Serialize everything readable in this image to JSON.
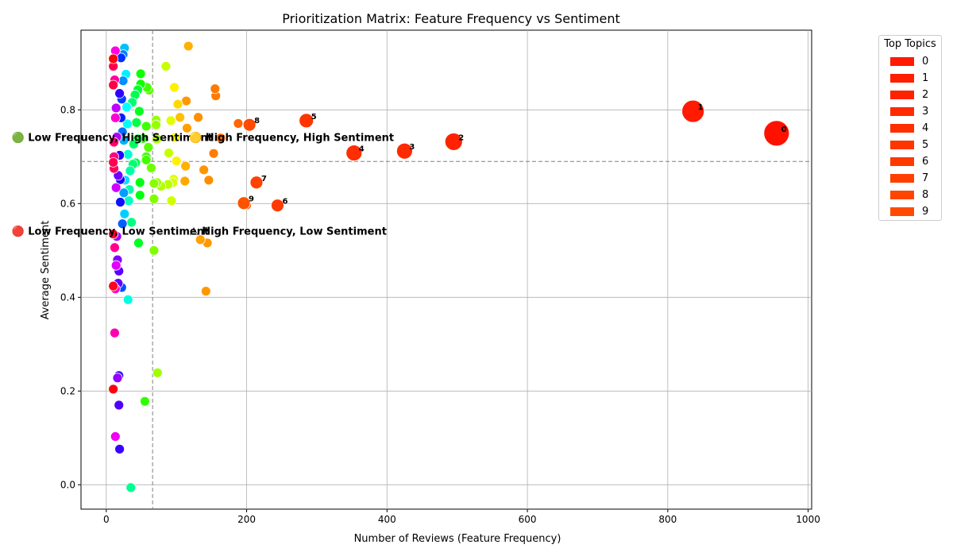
{
  "chart_data": {
    "type": "scatter",
    "title": "Prioritization Matrix: Feature Frequency vs Sentiment",
    "xlabel": "Number of Reviews (Feature Frequency)",
    "ylabel": "Average Sentiment",
    "xlim": [
      -36,
      1005
    ],
    "ylim": [
      -0.052,
      0.97
    ],
    "xticks": [
      0,
      200,
      400,
      600,
      800,
      1000
    ],
    "yticks": [
      0.0,
      0.2,
      0.4,
      0.6,
      0.8
    ],
    "xtick_labels": [
      "0",
      "200",
      "400",
      "600",
      "800",
      "1000"
    ],
    "ytick_labels": [
      "0.0",
      "0.2",
      "0.4",
      "0.6",
      "0.8"
    ],
    "grid": true,
    "divider_x": 66,
    "divider_y": 0.69,
    "quadrant_labels": [
      {
        "text": "🟢 Low Frequency, High Sentiment",
        "x": -135,
        "y": 0.74
      },
      {
        "text": "🟡 High Frequency, High Sentiment",
        "x": 118,
        "y": 0.74
      },
      {
        "text": "🔴 Low Frequency, Low Sentiment",
        "x": -135,
        "y": 0.54
      },
      {
        "text": "⚠ High Frequency, Low Sentiment",
        "x": 118,
        "y": 0.54
      }
    ],
    "legend": {
      "title": "Top Topics",
      "placement": "outside-right",
      "entries": [
        "0",
        "1",
        "2",
        "3",
        "4",
        "5",
        "6",
        "7",
        "8",
        "9"
      ],
      "colors": [
        "#ff1a00",
        "#ff1f00",
        "#ff2200",
        "#ff2a00",
        "#ff2e00",
        "#ff3500",
        "#ff3a00",
        "#ff3f00",
        "#ff4500",
        "#ff4a00"
      ]
    },
    "top_topics": [
      {
        "label": "0",
        "x": 955,
        "y": 0.75,
        "color": "#ff1100"
      },
      {
        "label": "1",
        "x": 836,
        "y": 0.797,
        "color": "#ff1a00"
      },
      {
        "label": "2",
        "x": 495,
        "y": 0.732,
        "color": "#ff2200"
      },
      {
        "label": "3",
        "x": 425,
        "y": 0.712,
        "color": "#ff2a00"
      },
      {
        "label": "4",
        "x": 353,
        "y": 0.708,
        "color": "#ff2e00"
      },
      {
        "label": "5",
        "x": 285,
        "y": 0.777,
        "color": "#ff3500"
      },
      {
        "label": "6",
        "x": 244,
        "y": 0.596,
        "color": "#ff3a00"
      },
      {
        "label": "7",
        "x": 214,
        "y": 0.645,
        "color": "#ff4200"
      },
      {
        "label": "8",
        "x": 204,
        "y": 0.768,
        "color": "#ff4a00"
      },
      {
        "label": "9",
        "x": 196,
        "y": 0.601,
        "color": "#ff5200"
      }
    ],
    "other_topics": [
      {
        "x": 156,
        "y": 0.83,
        "color": "#ff7a00"
      },
      {
        "x": 155,
        "y": 0.845,
        "color": "#ff7a00"
      },
      {
        "x": 163,
        "y": 0.74,
        "color": "#ff6e00"
      },
      {
        "x": 153,
        "y": 0.707,
        "color": "#ff7c00"
      },
      {
        "x": 188,
        "y": 0.771,
        "color": "#ff6400"
      },
      {
        "x": 200,
        "y": 0.597,
        "color": "#ff6000"
      },
      {
        "x": 131,
        "y": 0.784,
        "color": "#ff9000"
      },
      {
        "x": 114,
        "y": 0.819,
        "color": "#ff9800"
      },
      {
        "x": 115,
        "y": 0.761,
        "color": "#ffa000"
      },
      {
        "x": 139,
        "y": 0.672,
        "color": "#ff9400"
      },
      {
        "x": 146,
        "y": 0.65,
        "color": "#ff8c00"
      },
      {
        "x": 112,
        "y": 0.648,
        "color": "#ffa800"
      },
      {
        "x": 113,
        "y": 0.68,
        "color": "#ffb000"
      },
      {
        "x": 117,
        "y": 0.936,
        "color": "#ffb000"
      },
      {
        "x": 144,
        "y": 0.516,
        "color": "#ff9800"
      },
      {
        "x": 134,
        "y": 0.523,
        "color": "#ffa000"
      },
      {
        "x": 142,
        "y": 0.413,
        "color": "#ff9800"
      },
      {
        "x": 105,
        "y": 0.784,
        "color": "#ffc000"
      },
      {
        "x": 102,
        "y": 0.812,
        "color": "#ffd800"
      },
      {
        "x": 97,
        "y": 0.848,
        "color": "#fff000"
      },
      {
        "x": 100,
        "y": 0.691,
        "color": "#fff000"
      },
      {
        "x": 98,
        "y": 0.741,
        "color": "#ffff00"
      },
      {
        "x": 92,
        "y": 0.777,
        "color": "#e0ff00"
      },
      {
        "x": 96,
        "y": 0.652,
        "color": "#e0ff00"
      },
      {
        "x": 95,
        "y": 0.645,
        "color": "#d8ff00"
      },
      {
        "x": 93,
        "y": 0.606,
        "color": "#d0ff00"
      },
      {
        "x": 89,
        "y": 0.708,
        "color": "#c8ff00"
      },
      {
        "x": 85,
        "y": 0.893,
        "color": "#c8ff00"
      },
      {
        "x": 88,
        "y": 0.641,
        "color": "#b8ff00"
      },
      {
        "x": 78,
        "y": 0.637,
        "color": "#b0ff00"
      },
      {
        "x": 72,
        "y": 0.738,
        "color": "#a8ff00"
      },
      {
        "x": 72,
        "y": 0.645,
        "color": "#a0ff00"
      },
      {
        "x": 71,
        "y": 0.778,
        "color": "#98ff00"
      },
      {
        "x": 71,
        "y": 0.768,
        "color": "#98ff00"
      },
      {
        "x": 73,
        "y": 0.239,
        "color": "#a0ff00"
      },
      {
        "x": 68,
        "y": 0.643,
        "color": "#88ff00"
      },
      {
        "x": 68,
        "y": 0.61,
        "color": "#80ff00"
      },
      {
        "x": 68,
        "y": 0.5,
        "color": "#80ff00"
      },
      {
        "x": 64,
        "y": 0.676,
        "color": "#70ff00"
      },
      {
        "x": 61,
        "y": 0.842,
        "color": "#60ff00"
      },
      {
        "x": 60,
        "y": 0.72,
        "color": "#58ff00"
      },
      {
        "x": 57,
        "y": 0.765,
        "color": "#40ff00"
      },
      {
        "x": 58,
        "y": 0.848,
        "color": "#40ff00"
      },
      {
        "x": 57,
        "y": 0.7,
        "color": "#40ff00"
      },
      {
        "x": 57,
        "y": 0.693,
        "color": "#40ff00"
      },
      {
        "x": 55,
        "y": 0.178,
        "color": "#30ff00"
      },
      {
        "x": 52,
        "y": 0.739,
        "color": "#20ff00"
      },
      {
        "x": 49,
        "y": 0.855,
        "color": "#10ff00"
      },
      {
        "x": 49,
        "y": 0.877,
        "color": "#10ff00"
      },
      {
        "x": 48,
        "y": 0.618,
        "color": "#00ff10"
      },
      {
        "x": 48,
        "y": 0.645,
        "color": "#00ff10"
      },
      {
        "x": 47,
        "y": 0.797,
        "color": "#00ff20"
      },
      {
        "x": 46,
        "y": 0.516,
        "color": "#00ff20"
      },
      {
        "x": 45,
        "y": 0.738,
        "color": "#00ff30"
      },
      {
        "x": 45,
        "y": 0.843,
        "color": "#00ff30"
      },
      {
        "x": 43,
        "y": 0.773,
        "color": "#00ff40"
      },
      {
        "x": 42,
        "y": 0.687,
        "color": "#00ff50"
      },
      {
        "x": 41,
        "y": 0.832,
        "color": "#00ff50"
      },
      {
        "x": 39,
        "y": 0.727,
        "color": "#00ff60"
      },
      {
        "x": 37,
        "y": 0.816,
        "color": "#00ff70"
      },
      {
        "x": 38,
        "y": 0.684,
        "color": "#00ff70"
      },
      {
        "x": 36,
        "y": 0.56,
        "color": "#00ff80"
      },
      {
        "x": 35,
        "y": -0.006,
        "color": "#00ff90"
      },
      {
        "x": 34,
        "y": 0.67,
        "color": "#00ffa0"
      },
      {
        "x": 33,
        "y": 0.63,
        "color": "#00ffb0"
      },
      {
        "x": 32,
        "y": 0.606,
        "color": "#00ffc0"
      },
      {
        "x": 31,
        "y": 0.705,
        "color": "#00ffd0"
      },
      {
        "x": 31,
        "y": 0.395,
        "color": "#00ffe0"
      },
      {
        "x": 30,
        "y": 0.77,
        "color": "#00fff0"
      },
      {
        "x": 29,
        "y": 0.806,
        "color": "#00ffff"
      },
      {
        "x": 28,
        "y": 0.876,
        "color": "#00f0ff"
      },
      {
        "x": 27,
        "y": 0.65,
        "color": "#00e0ff"
      },
      {
        "x": 26,
        "y": 0.578,
        "color": "#00d0ff"
      },
      {
        "x": 26,
        "y": 0.932,
        "color": "#00c0ff"
      },
      {
        "x": 25,
        "y": 0.735,
        "color": "#00b0ff"
      },
      {
        "x": 25,
        "y": 0.623,
        "color": "#00a0ff"
      },
      {
        "x": 24,
        "y": 0.862,
        "color": "#0090ff"
      },
      {
        "x": 24,
        "y": 0.918,
        "color": "#0080ff"
      },
      {
        "x": 23,
        "y": 0.753,
        "color": "#0070ff"
      },
      {
        "x": 23,
        "y": 0.557,
        "color": "#0060ff"
      },
      {
        "x": 22,
        "y": 0.421,
        "color": "#0050ff"
      },
      {
        "x": 22,
        "y": 0.823,
        "color": "#0040ff"
      },
      {
        "x": 21,
        "y": 0.911,
        "color": "#0030ff"
      },
      {
        "x": 21,
        "y": 0.783,
        "color": "#0020ff"
      },
      {
        "x": 20,
        "y": 0.603,
        "color": "#1010ff"
      },
      {
        "x": 20,
        "y": 0.651,
        "color": "#2000ff"
      },
      {
        "x": 19,
        "y": 0.703,
        "color": "#2800ff"
      },
      {
        "x": 19,
        "y": 0.835,
        "color": "#3000ff"
      },
      {
        "x": 19,
        "y": 0.076,
        "color": "#3800ff"
      },
      {
        "x": 18,
        "y": 0.233,
        "color": "#4000ff"
      },
      {
        "x": 18,
        "y": 0.17,
        "color": "#5000ff"
      },
      {
        "x": 18,
        "y": 0.456,
        "color": "#5800ff"
      },
      {
        "x": 17,
        "y": 0.43,
        "color": "#6000ff"
      },
      {
        "x": 17,
        "y": 0.66,
        "color": "#7000ff"
      },
      {
        "x": 16,
        "y": 0.48,
        "color": "#8000ff"
      },
      {
        "x": 16,
        "y": 0.228,
        "color": "#9000ff"
      },
      {
        "x": 15,
        "y": 0.53,
        "color": "#a000ff"
      },
      {
        "x": 15,
        "y": 0.742,
        "color": "#b000ff"
      },
      {
        "x": 14,
        "y": 0.804,
        "color": "#c000ff"
      },
      {
        "x": 14,
        "y": 0.634,
        "color": "#d000ff"
      },
      {
        "x": 14,
        "y": 0.468,
        "color": "#e000ff"
      },
      {
        "x": 13,
        "y": 0.103,
        "color": "#f000f0"
      },
      {
        "x": 13,
        "y": 0.926,
        "color": "#ff00e0"
      },
      {
        "x": 13,
        "y": 0.783,
        "color": "#ff00d0"
      },
      {
        "x": 13,
        "y": 0.418,
        "color": "#ff00c0"
      },
      {
        "x": 12,
        "y": 0.324,
        "color": "#ff00b0"
      },
      {
        "x": 12,
        "y": 0.864,
        "color": "#ff00a0"
      },
      {
        "x": 12,
        "y": 0.506,
        "color": "#ff0090"
      },
      {
        "x": 11,
        "y": 0.7,
        "color": "#ff0080"
      },
      {
        "x": 11,
        "y": 0.731,
        "color": "#ff0070"
      },
      {
        "x": 11,
        "y": 0.675,
        "color": "#ff0060"
      },
      {
        "x": 10,
        "y": 0.893,
        "color": "#ff0050"
      },
      {
        "x": 10,
        "y": 0.853,
        "color": "#ff0040"
      },
      {
        "x": 10,
        "y": 0.535,
        "color": "#ff0030"
      },
      {
        "x": 10,
        "y": 0.424,
        "color": "#ff0020"
      },
      {
        "x": 10,
        "y": 0.204,
        "color": "#ff0010"
      },
      {
        "x": 10,
        "y": 0.909,
        "color": "#ff0008"
      },
      {
        "x": 10,
        "y": 0.688,
        "color": "#ff0050"
      }
    ]
  }
}
